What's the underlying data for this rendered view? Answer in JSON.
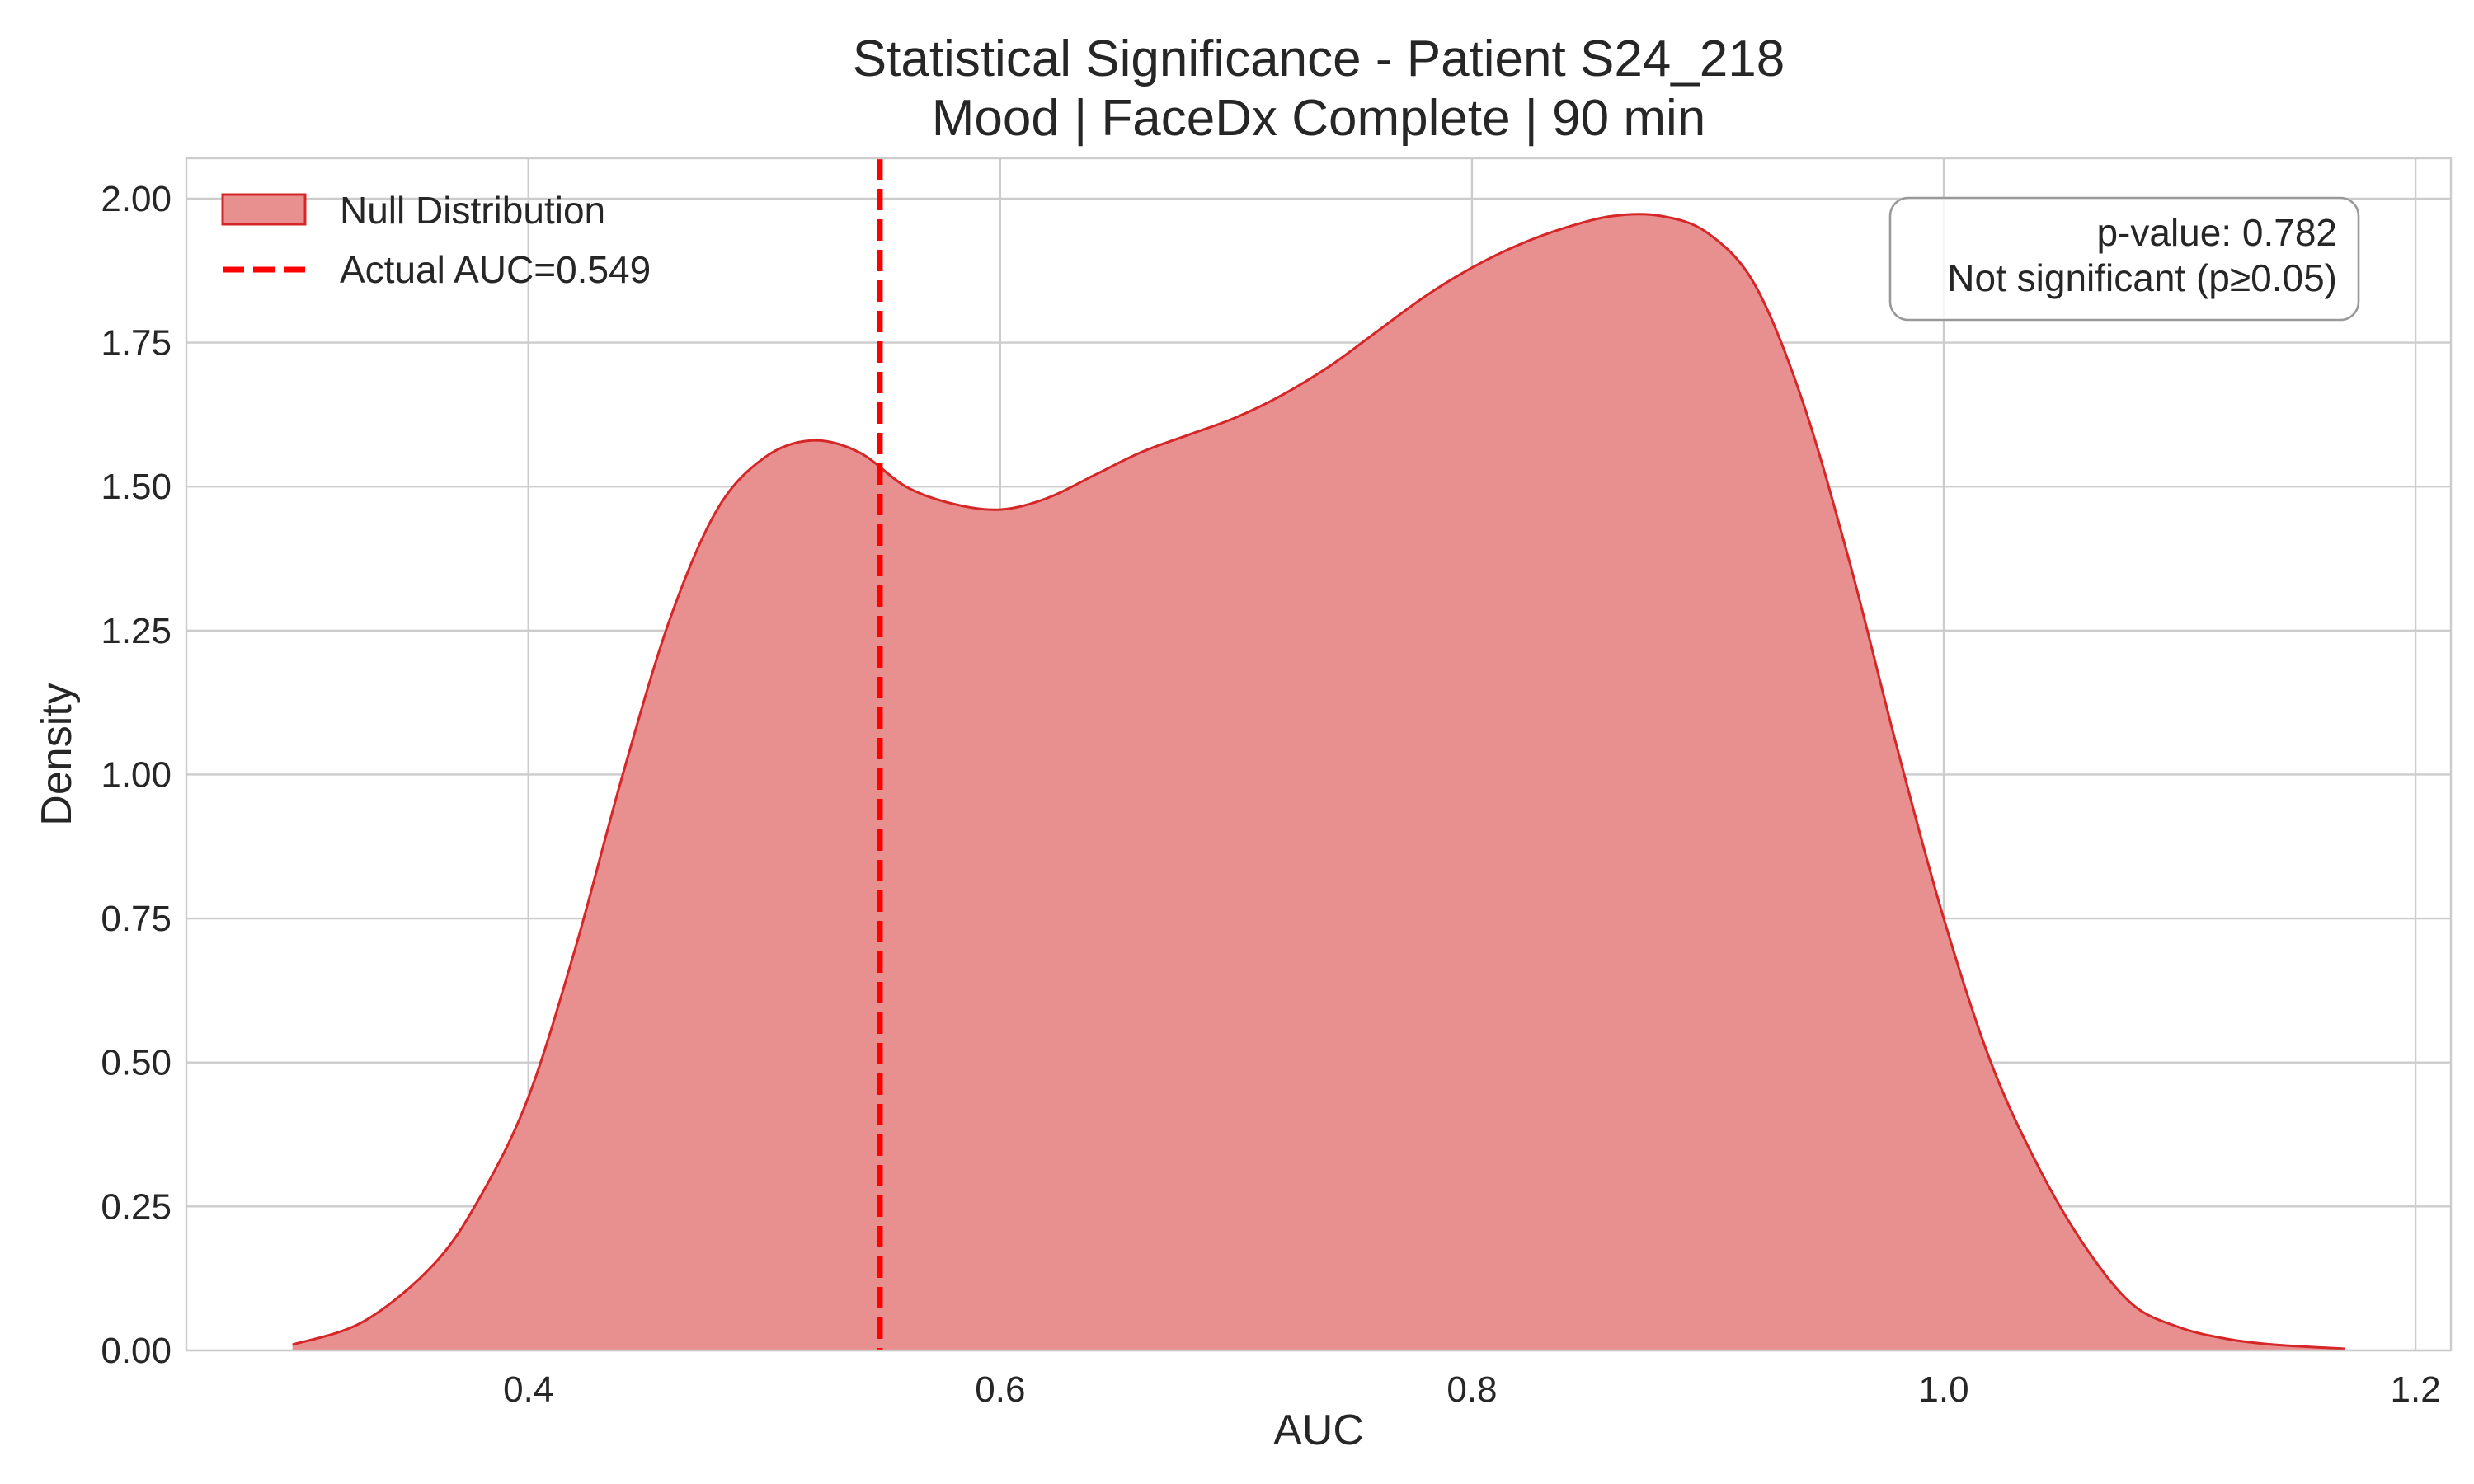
{
  "chart_data": {
    "type": "area",
    "title": "Statistical Significance - Patient S24_218",
    "subtitle": "Mood | FaceDx Complete | 90 min",
    "xlabel": "AUC",
    "ylabel": "Density",
    "xlim": [
      0.255,
      1.215
    ],
    "ylim": [
      0,
      2.07
    ],
    "xticks": [
      0.4,
      0.6,
      0.8,
      1.0,
      1.2
    ],
    "xtick_labels": [
      "0.4",
      "0.6",
      "0.8",
      "1.0",
      "1.2"
    ],
    "yticks": [
      0,
      0.25,
      0.5,
      0.75,
      1.0,
      1.25,
      1.5,
      1.75,
      2.0
    ],
    "ytick_labels": [
      "0.00",
      "0.25",
      "0.50",
      "0.75",
      "1.00",
      "1.25",
      "1.50",
      "1.75",
      "2.00"
    ],
    "grid": true,
    "legend_position": "top-left",
    "series": [
      {
        "name": "Null Distribution",
        "kind": "density-fill",
        "color": "#d62728",
        "fill_color": "#e88f8f",
        "x": [
          0.3,
          0.33,
          0.36,
          0.38,
          0.4,
          0.42,
          0.44,
          0.46,
          0.48,
          0.5,
          0.52,
          0.54,
          0.56,
          0.58,
          0.6,
          0.62,
          0.64,
          0.66,
          0.68,
          0.7,
          0.72,
          0.74,
          0.76,
          0.78,
          0.8,
          0.82,
          0.84,
          0.86,
          0.88,
          0.9,
          0.92,
          0.94,
          0.96,
          0.98,
          1.0,
          1.02,
          1.04,
          1.06,
          1.08,
          1.1,
          1.12,
          1.14,
          1.17
        ],
        "y": [
          0.01,
          0.05,
          0.15,
          0.27,
          0.44,
          0.7,
          1.0,
          1.27,
          1.46,
          1.55,
          1.58,
          1.56,
          1.5,
          1.47,
          1.46,
          1.48,
          1.52,
          1.56,
          1.59,
          1.62,
          1.66,
          1.71,
          1.77,
          1.83,
          1.88,
          1.92,
          1.95,
          1.97,
          1.97,
          1.94,
          1.85,
          1.65,
          1.37,
          1.05,
          0.75,
          0.5,
          0.32,
          0.18,
          0.08,
          0.04,
          0.02,
          0.01,
          0.003
        ]
      },
      {
        "name": "Actual AUC=0.549",
        "kind": "vline",
        "x": 0.549,
        "color": "#ff0000",
        "dash": "dashed"
      }
    ],
    "annotation": {
      "lines": [
        "p-value: 0.782",
        "Not significant (p≥0.05)"
      ],
      "position": "top-right"
    }
  }
}
